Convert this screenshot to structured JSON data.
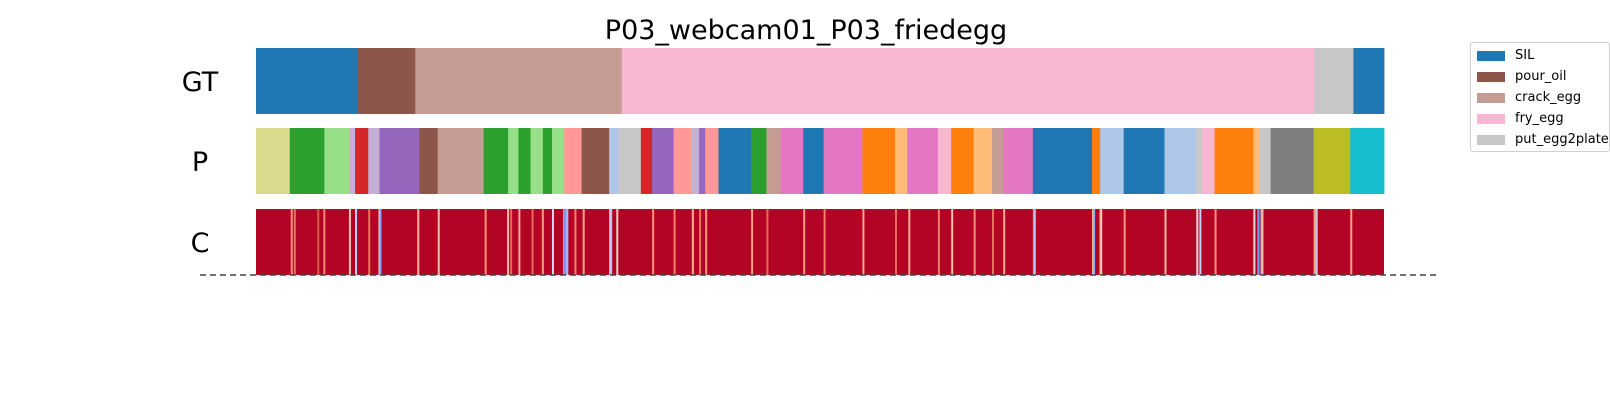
{
  "chart_data": {
    "type": "segmentation",
    "title": "P03_webcam01_P03_friedegg",
    "x_range": [
      0,
      1000
    ],
    "rows": [
      {
        "name": "GT",
        "segments": [
          {
            "start": 0,
            "end": 90.5,
            "color": "#1f77b4"
          },
          {
            "start": 90.5,
            "end": 141.2,
            "color": "#8c564b"
          },
          {
            "start": 141.2,
            "end": 324.2,
            "color": "#c49c94"
          },
          {
            "start": 324.2,
            "end": 938.5,
            "color": "#f7b6d2"
          },
          {
            "start": 938.5,
            "end": 972.9,
            "color": "#c7c7c7"
          },
          {
            "start": 972.9,
            "end": 1000,
            "color": "#1f77b4"
          }
        ]
      },
      {
        "name": "P",
        "segments": [
          {
            "start": 0,
            "end": 29.9,
            "color": "#dbdb8d"
          },
          {
            "start": 29.9,
            "end": 60.6,
            "color": "#2ca02c"
          },
          {
            "start": 60.6,
            "end": 82.4,
            "color": "#98df8a"
          },
          {
            "start": 82.4,
            "end": 87.8,
            "color": "#c5b0d5"
          },
          {
            "start": 87.8,
            "end": 99.5,
            "color": "#d62728"
          },
          {
            "start": 99.5,
            "end": 109.5,
            "color": "#c5b0d5"
          },
          {
            "start": 109.5,
            "end": 144.8,
            "color": "#9467bd"
          },
          {
            "start": 144.8,
            "end": 161.1,
            "color": "#8c564b"
          },
          {
            "start": 161.1,
            "end": 201.8,
            "color": "#c49c94"
          },
          {
            "start": 201.8,
            "end": 223.5,
            "color": "#2ca02c"
          },
          {
            "start": 223.5,
            "end": 232.6,
            "color": "#98df8a"
          },
          {
            "start": 232.6,
            "end": 243.4,
            "color": "#2ca02c"
          },
          {
            "start": 243.4,
            "end": 254.3,
            "color": "#98df8a"
          },
          {
            "start": 254.3,
            "end": 262.4,
            "color": "#2ca02c"
          },
          {
            "start": 262.4,
            "end": 273.3,
            "color": "#98df8a"
          },
          {
            "start": 273.3,
            "end": 288.7,
            "color": "#ff9896"
          },
          {
            "start": 288.7,
            "end": 313.1,
            "color": "#8c564b"
          },
          {
            "start": 313.1,
            "end": 321.3,
            "color": "#aec7e8"
          },
          {
            "start": 321.3,
            "end": 341.2,
            "color": "#c7c7c7"
          },
          {
            "start": 341.2,
            "end": 351.2,
            "color": "#d62728"
          },
          {
            "start": 351.2,
            "end": 370.2,
            "color": "#9467bd"
          },
          {
            "start": 370.2,
            "end": 386.4,
            "color": "#ff9896"
          },
          {
            "start": 386.4,
            "end": 392.8,
            "color": "#c5b0d5"
          },
          {
            "start": 392.8,
            "end": 398.2,
            "color": "#9467bd"
          },
          {
            "start": 398.2,
            "end": 410.0,
            "color": "#ff9896"
          },
          {
            "start": 410.0,
            "end": 438.9,
            "color": "#1f77b4"
          },
          {
            "start": 438.9,
            "end": 452.5,
            "color": "#2ca02c"
          },
          {
            "start": 452.5,
            "end": 465.2,
            "color": "#c49c94"
          },
          {
            "start": 465.2,
            "end": 485.1,
            "color": "#e377c2"
          },
          {
            "start": 485.1,
            "end": 503.2,
            "color": "#1f77b4"
          },
          {
            "start": 503.2,
            "end": 537.6,
            "color": "#e377c2"
          },
          {
            "start": 537.6,
            "end": 566.5,
            "color": "#ff7f0e"
          },
          {
            "start": 566.5,
            "end": 577.4,
            "color": "#ffbb78"
          },
          {
            "start": 577.4,
            "end": 604.5,
            "color": "#e377c2"
          },
          {
            "start": 604.5,
            "end": 616.3,
            "color": "#f7b6d2"
          },
          {
            "start": 616.3,
            "end": 636.2,
            "color": "#ff7f0e"
          },
          {
            "start": 636.2,
            "end": 652.5,
            "color": "#ffbb78"
          },
          {
            "start": 652.5,
            "end": 662.4,
            "color": "#c49c94"
          },
          {
            "start": 662.4,
            "end": 688.7,
            "color": "#e377c2"
          },
          {
            "start": 688.7,
            "end": 741.2,
            "color": "#1f77b4"
          },
          {
            "start": 741.2,
            "end": 748.4,
            "color": "#ff7f0e"
          },
          {
            "start": 748.4,
            "end": 769.2,
            "color": "#aec7e8"
          },
          {
            "start": 769.2,
            "end": 805.4,
            "color": "#1f77b4"
          },
          {
            "start": 805.4,
            "end": 833.6,
            "color": "#aec7e8"
          },
          {
            "start": 833.6,
            "end": 838.9,
            "color": "#c7c7c7"
          },
          {
            "start": 838.9,
            "end": 849.8,
            "color": "#f7b6d2"
          },
          {
            "start": 849.8,
            "end": 884.2,
            "color": "#ff7f0e"
          },
          {
            "start": 884.2,
            "end": 889.6,
            "color": "#ffbb78"
          },
          {
            "start": 889.6,
            "end": 899.5,
            "color": "#c7c7c7"
          },
          {
            "start": 899.5,
            "end": 937.6,
            "color": "#7f7f7f"
          },
          {
            "start": 937.6,
            "end": 970.1,
            "color": "#bcbd22"
          },
          {
            "start": 970.1,
            "end": 1000,
            "color": "#17becf"
          }
        ]
      },
      {
        "name": "C",
        "base_color": "#b40426",
        "marks": [
          {
            "x": 30.8,
            "color": "#f4987a"
          },
          {
            "x": 33.5,
            "color": "#e7745b"
          },
          {
            "x": 54.3,
            "color": "#dc5d4a"
          },
          {
            "x": 59.7,
            "color": "#f08b6e"
          },
          {
            "x": 82.4,
            "color": "#f2cbb7"
          },
          {
            "x": 87.8,
            "color": "#bfd3f6"
          },
          {
            "x": 99.5,
            "color": "#e8765c"
          },
          {
            "x": 108.6,
            "color": "#dddcdc"
          },
          {
            "x": 109.5,
            "color": "#7b9ff9"
          },
          {
            "x": 143.0,
            "color": "#f7b89c"
          },
          {
            "x": 161.1,
            "color": "#f5c0a7"
          },
          {
            "x": 202.7,
            "color": "#f39577"
          },
          {
            "x": 222.6,
            "color": "#f6bfa6"
          },
          {
            "x": 225.3,
            "color": "#e36c55"
          },
          {
            "x": 232.6,
            "color": "#f7ad90"
          },
          {
            "x": 244.3,
            "color": "#e57058"
          },
          {
            "x": 253.4,
            "color": "#f49a7b"
          },
          {
            "x": 262.4,
            "color": "#cfdaea"
          },
          {
            "x": 272.4,
            "color": "#f2cbb7"
          },
          {
            "x": 273.3,
            "color": "#5a78e4"
          },
          {
            "x": 274.2,
            "color": "#86a9fc"
          },
          {
            "x": 275.1,
            "color": "#9ebeff"
          },
          {
            "x": 282.3,
            "color": "#ee8468"
          },
          {
            "x": 289.6,
            "color": "#f7a889"
          },
          {
            "x": 313.1,
            "color": "#f3c7b1"
          },
          {
            "x": 314.0,
            "color": "#aec9fc"
          },
          {
            "x": 319.4,
            "color": "#edd1c2"
          },
          {
            "x": 351.2,
            "color": "#f39778"
          },
          {
            "x": 370.2,
            "color": "#ee8468"
          },
          {
            "x": 386.4,
            "color": "#f7b093"
          },
          {
            "x": 392.8,
            "color": "#e9785d"
          },
          {
            "x": 398.2,
            "color": "#f59d7e"
          },
          {
            "x": 438.9,
            "color": "#f6a283"
          },
          {
            "x": 452.5,
            "color": "#e36c55"
          },
          {
            "x": 485.1,
            "color": "#f59c7d"
          },
          {
            "x": 503.2,
            "color": "#ed8366"
          },
          {
            "x": 537.6,
            "color": "#f7a98b"
          },
          {
            "x": 566.5,
            "color": "#e57058"
          },
          {
            "x": 578.3,
            "color": "#f7af91"
          },
          {
            "x": 604.5,
            "color": "#ec7f63"
          },
          {
            "x": 616.3,
            "color": "#f5c2aa"
          },
          {
            "x": 636.2,
            "color": "#f29072"
          },
          {
            "x": 652.5,
            "color": "#e7745b"
          },
          {
            "x": 662.4,
            "color": "#f7ac8e"
          },
          {
            "x": 688.7,
            "color": "#f18f71"
          },
          {
            "x": 689.6,
            "color": "#a3c2fe"
          },
          {
            "x": 741.2,
            "color": "#f5c4ac"
          },
          {
            "x": 742.1,
            "color": "#8caffe"
          },
          {
            "x": 747.5,
            "color": "#e46e56"
          },
          {
            "x": 748.4,
            "color": "#edd1c2"
          },
          {
            "x": 769.2,
            "color": "#f4987a"
          },
          {
            "x": 805.4,
            "color": "#f7ba9f"
          },
          {
            "x": 833.6,
            "color": "#dadce0"
          },
          {
            "x": 836.3,
            "color": "#c0d4f5"
          },
          {
            "x": 849.8,
            "color": "#f29274"
          },
          {
            "x": 884.2,
            "color": "#e0dbd8"
          },
          {
            "x": 887.8,
            "color": "#7da0f9"
          },
          {
            "x": 890.5,
            "color": "#96b7ff"
          },
          {
            "x": 891.4,
            "color": "#f7b599"
          },
          {
            "x": 937.6,
            "color": "#f7a688"
          },
          {
            "x": 939.4,
            "color": "#c6d6f1"
          },
          {
            "x": 970.1,
            "color": "#f6a385"
          }
        ]
      }
    ],
    "legend": {
      "position": "top-right",
      "entries": [
        {
          "label": "SIL",
          "color": "#1f77b4"
        },
        {
          "label": "pour_oil",
          "color": "#8c564b"
        },
        {
          "label": "crack_egg",
          "color": "#c49c94"
        },
        {
          "label": "fry_egg",
          "color": "#f7b6d2"
        },
        {
          "label": "put_egg2plate",
          "color": "#c7c7c7"
        }
      ]
    }
  }
}
